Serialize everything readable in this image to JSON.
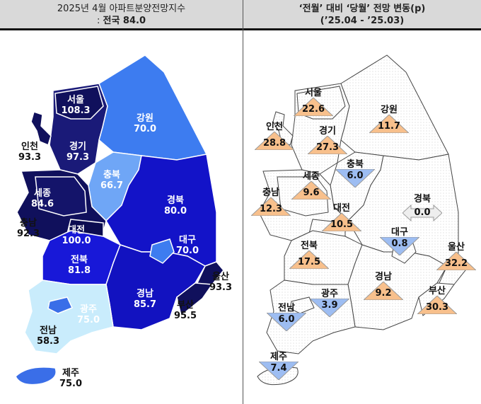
{
  "header": {
    "left_line1": "2025년 4월 아파트분양전망지수",
    "left_line2_prefix": ": ",
    "left_line2_bold": "전국 84.0",
    "right_line1": "‘전월’ 대비 ‘당월’ 전망 변동(p)",
    "right_line2": "(’25.04  -  ’25.03)"
  },
  "index_map": {
    "regions": [
      {
        "name": "서울",
        "value": "108.3",
        "color": "#10105c"
      },
      {
        "name": "인천",
        "value": "93.3",
        "color": "#10105c"
      },
      {
        "name": "경기",
        "value": "97.3",
        "color": "#1a1a78"
      },
      {
        "name": "강원",
        "value": "70.0",
        "color": "#3d7cf0"
      },
      {
        "name": "충북",
        "value": "66.7",
        "color": "#6fa6f6"
      },
      {
        "name": "세종",
        "value": "84.6",
        "color": "#14146a"
      },
      {
        "name": "경북",
        "value": "80.0",
        "color": "#1313c8"
      },
      {
        "name": "충남",
        "value": "92.3",
        "color": "#10105c"
      },
      {
        "name": "대전",
        "value": "100.0",
        "color": "#0c0c50"
      },
      {
        "name": "대구",
        "value": "70.0",
        "color": "#3d7cf0"
      },
      {
        "name": "전북",
        "value": "81.8",
        "color": "#1818d8"
      },
      {
        "name": "울산",
        "value": "93.3",
        "color": "#10105c"
      },
      {
        "name": "경남",
        "value": "85.7",
        "color": "#1212c0"
      },
      {
        "name": "부산",
        "value": "95.5",
        "color": "#10105c"
      },
      {
        "name": "광주",
        "value": "75.0",
        "color": "#3a6ee8"
      },
      {
        "name": "전남",
        "value": "58.3",
        "color": "#c9ecfc"
      },
      {
        "name": "제주",
        "value": "75.0",
        "color": "#3a6ee8"
      }
    ]
  },
  "change_map": {
    "colors": {
      "up": "#f8c08c",
      "down": "#9dbdf2",
      "flat": "#eeeeee"
    },
    "regions": [
      {
        "name": "서울",
        "value": "22.6",
        "direction": "up"
      },
      {
        "name": "인천",
        "value": "28.8",
        "direction": "up"
      },
      {
        "name": "경기",
        "value": "27.3",
        "direction": "up"
      },
      {
        "name": "강원",
        "value": "11.7",
        "direction": "up"
      },
      {
        "name": "충북",
        "value": "6.0",
        "direction": "down"
      },
      {
        "name": "세종",
        "value": "9.6",
        "direction": "up"
      },
      {
        "name": "충남",
        "value": "12.3",
        "direction": "up"
      },
      {
        "name": "경북",
        "value": "0.0",
        "direction": "flat"
      },
      {
        "name": "대전",
        "value": "10.5",
        "direction": "up"
      },
      {
        "name": "대구",
        "value": "0.8",
        "direction": "down"
      },
      {
        "name": "전북",
        "value": "17.5",
        "direction": "up"
      },
      {
        "name": "울산",
        "value": "32.2",
        "direction": "up"
      },
      {
        "name": "경남",
        "value": "9.2",
        "direction": "up"
      },
      {
        "name": "부산",
        "value": "30.3",
        "direction": "up"
      },
      {
        "name": "광주",
        "value": "3.9",
        "direction": "down"
      },
      {
        "name": "전남",
        "value": "6.0",
        "direction": "down"
      },
      {
        "name": "제주",
        "value": "7.4",
        "direction": "down"
      }
    ]
  }
}
